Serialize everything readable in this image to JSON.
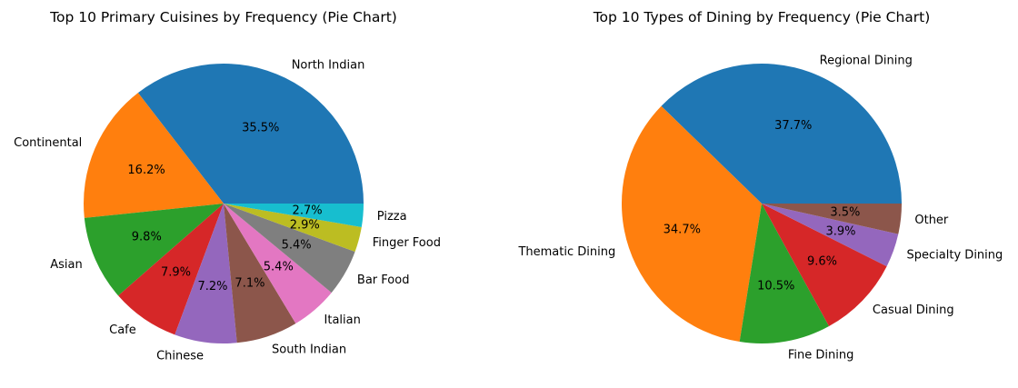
{
  "chart_data": [
    {
      "type": "pie",
      "title": "Top 10 Primary Cuisines by Frequency (Pie Chart)",
      "labels": [
        "North Indian",
        "Continental",
        "Asian",
        "Cafe",
        "Chinese",
        "South Indian",
        "Italian",
        "Bar Food",
        "Finger Food",
        "Pizza"
      ],
      "values": [
        35.5,
        16.2,
        9.8,
        7.9,
        7.2,
        7.1,
        5.4,
        5.4,
        2.9,
        2.7
      ],
      "value_labels": [
        "35.5%",
        "16.2%",
        "9.8%",
        "7.9%",
        "7.2%",
        "7.1%",
        "5.4%",
        "5.4%",
        "2.9%",
        "2.7%"
      ],
      "colors": [
        "#1f77b4",
        "#ff7f0e",
        "#2ca02c",
        "#d62728",
        "#9467bd",
        "#8c564b",
        "#e377c2",
        "#7f7f7f",
        "#bcbd22",
        "#17becf"
      ],
      "start_angle_deg": 0,
      "direction": "counterclockwise"
    },
    {
      "type": "pie",
      "title": "Top 10 Types of Dining by Frequency (Pie Chart)",
      "labels": [
        "Regional Dining",
        "Thematic Dining",
        "Fine Dining",
        "Casual Dining",
        "Specialty Dining",
        "Other"
      ],
      "values": [
        37.7,
        34.7,
        10.5,
        9.6,
        3.9,
        3.5
      ],
      "value_labels": [
        "37.7%",
        "34.7%",
        "10.5%",
        "9.6%",
        "3.9%",
        "3.5%"
      ],
      "colors": [
        "#1f77b4",
        "#ff7f0e",
        "#2ca02c",
        "#d62728",
        "#9467bd",
        "#8c564b"
      ],
      "start_angle_deg": 0,
      "direction": "counterclockwise"
    }
  ]
}
